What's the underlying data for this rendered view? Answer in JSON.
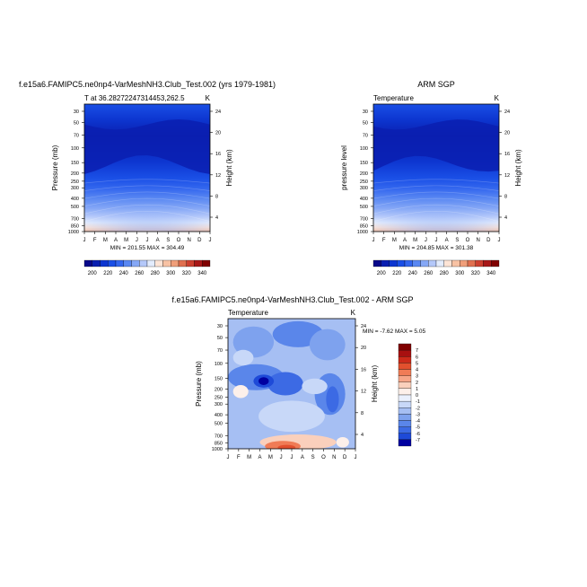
{
  "chart_data": [
    {
      "type": "heatmap",
      "title": "f.e15a6.FAMIPC5.ne0np4-VarMeshNH3.Club_Test.002 (yrs 1979-1981)",
      "subtitle_left": "T at 36.28272247314453,262.5",
      "subtitle_right": "K",
      "ylabel_left": "Pressure (mb)",
      "ylabel_right": "Height (km)",
      "x_ticks": [
        "J",
        "F",
        "M",
        "A",
        "M",
        "J",
        "J",
        "A",
        "S",
        "O",
        "N",
        "D",
        "J"
      ],
      "y_ticks": [
        "30",
        "50",
        "70",
        "100",
        "150",
        "200",
        "250",
        "300",
        "400",
        "500",
        "700",
        "850",
        "1000"
      ],
      "y_ticks_right": [
        "24",
        "20",
        "16",
        "12",
        "8",
        "4"
      ],
      "stats": "MIN = 201.55 MAX = 304.49",
      "colorbar_labels": [
        "200",
        "220",
        "240",
        "260",
        "280",
        "300",
        "320",
        "340"
      ],
      "min": 201.55,
      "max": 304.49
    },
    {
      "type": "heatmap",
      "title": "ARM SGP",
      "subtitle_left": "Temperature",
      "subtitle_right": "K",
      "ylabel_left": "pressure level",
      "ylabel_right": "Height (km)",
      "x_ticks": [
        "J",
        "F",
        "M",
        "A",
        "M",
        "J",
        "J",
        "A",
        "S",
        "O",
        "N",
        "D",
        "J"
      ],
      "y_ticks": [
        "30",
        "50",
        "70",
        "100",
        "150",
        "200",
        "250",
        "300",
        "400",
        "500",
        "700",
        "850",
        "1000"
      ],
      "y_ticks_right": [
        "24",
        "20",
        "16",
        "12",
        "8",
        "4"
      ],
      "stats": "MIN = 204.85 MAX = 301.38",
      "colorbar_labels": [
        "200",
        "220",
        "240",
        "260",
        "280",
        "300",
        "320",
        "340"
      ],
      "min": 204.85,
      "max": 301.38
    },
    {
      "type": "heatmap",
      "title": "f.e15a6.FAMIPC5.ne0np4-VarMeshNH3.Club_Test.002 - ARM SGP",
      "subtitle_left": "Temperature",
      "subtitle_right": "K",
      "ylabel_left": "Pressure (mb)",
      "ylabel_right": "Height (km)",
      "x_ticks": [
        "J",
        "F",
        "M",
        "A",
        "M",
        "J",
        "J",
        "A",
        "S",
        "O",
        "N",
        "D",
        "J"
      ],
      "y_ticks": [
        "30",
        "50",
        "70",
        "100",
        "150",
        "200",
        "250",
        "300",
        "400",
        "500",
        "700",
        "850",
        "1000"
      ],
      "y_ticks_right": [
        "24",
        "20",
        "16",
        "12",
        "8",
        "4"
      ],
      "stats": "MIN =  -7.62 MAX =   5.05",
      "colorbar_labels": [
        "7",
        "6",
        "5",
        "4",
        "3",
        "2",
        "1",
        "0",
        "-1",
        "-2",
        "-3",
        "-4",
        "-5",
        "-6",
        "-7"
      ],
      "min": -7.62,
      "max": 5.05
    }
  ],
  "colors": {
    "abs_scale": [
      "#08088a",
      "#0a1fb0",
      "#0d36d0",
      "#1a4fe6",
      "#3366ee",
      "#5a88f2",
      "#86a8f6",
      "#b4c8fa",
      "#e3ecfd",
      "#fde4d6",
      "#f8c2a4",
      "#f09f7a",
      "#e07050",
      "#cc4030",
      "#a81818",
      "#800000"
    ],
    "diff_scale": [
      "#800000",
      "#a81010",
      "#cc2a1a",
      "#e2502e",
      "#f07c56",
      "#f6a688",
      "#fad0bc",
      "#fdf0ea",
      "#eaf0fd",
      "#c8d8f8",
      "#a6bff3",
      "#7ea2ee",
      "#5a86ea",
      "#3c6ae4",
      "#1e4ad8",
      "#0000a0"
    ]
  }
}
